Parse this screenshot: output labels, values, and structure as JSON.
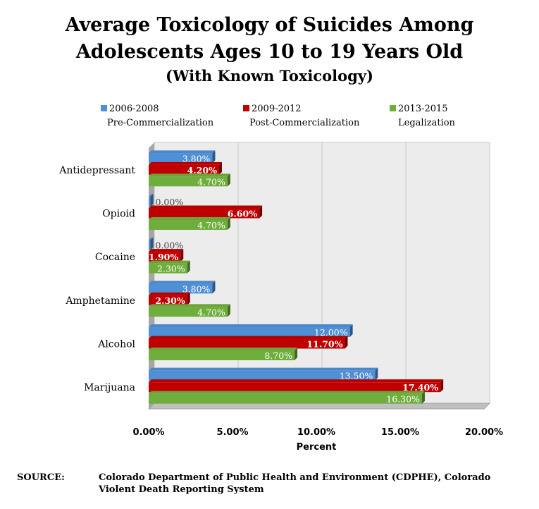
{
  "chart_data": {
    "type": "bar",
    "orientation": "horizontal",
    "title_lines": [
      "Average Toxicology of Suicides Among",
      "Adolescents Ages 10 to 19 Years Old"
    ],
    "subtitle": "(With Known Toxicology)",
    "xlabel": "Percent",
    "xlim": [
      0,
      20
    ],
    "x_ticks": [
      "0.00%",
      "5.00%",
      "10.00%",
      "15.00%",
      "20.00%"
    ],
    "categories": [
      "Antidepressant",
      "Opioid",
      "Cocaine",
      "Amphetamine",
      "Alcohol",
      "Marijuana"
    ],
    "series": [
      {
        "name": "2006-2008",
        "subname": "Pre-Commercialization",
        "color": "#4f8fd6",
        "values": [
          3.8,
          0,
          0,
          3.8,
          12.0,
          13.5
        ],
        "labels": [
          "3.80%",
          "0.00%",
          "0.00%",
          "3.80%",
          "12.00%",
          "13.50%"
        ]
      },
      {
        "name": "2009-2012",
        "subname": "Post-Commercialization",
        "color": "#c00000",
        "values": [
          4.2,
          6.6,
          1.9,
          2.3,
          11.7,
          17.4
        ],
        "labels": [
          "4.20%",
          "6.60%",
          "1.90%",
          "2.30%",
          "11.70%",
          "17.40%"
        ]
      },
      {
        "name": "2013-2015",
        "subname": "Legalization",
        "color": "#6fae3c",
        "values": [
          4.7,
          4.7,
          2.3,
          4.7,
          8.7,
          16.3
        ],
        "labels": [
          "4.70%",
          "4.70%",
          "2.30%",
          "4.70%",
          "8.70%",
          "16.30%"
        ]
      }
    ],
    "legend_position": "top",
    "grid": true,
    "style": "3d"
  },
  "source": {
    "label": "SOURCE:",
    "text": "Colorado Department of Public Health and Environment (CDPHE), Colorado Violent Death Reporting System"
  }
}
